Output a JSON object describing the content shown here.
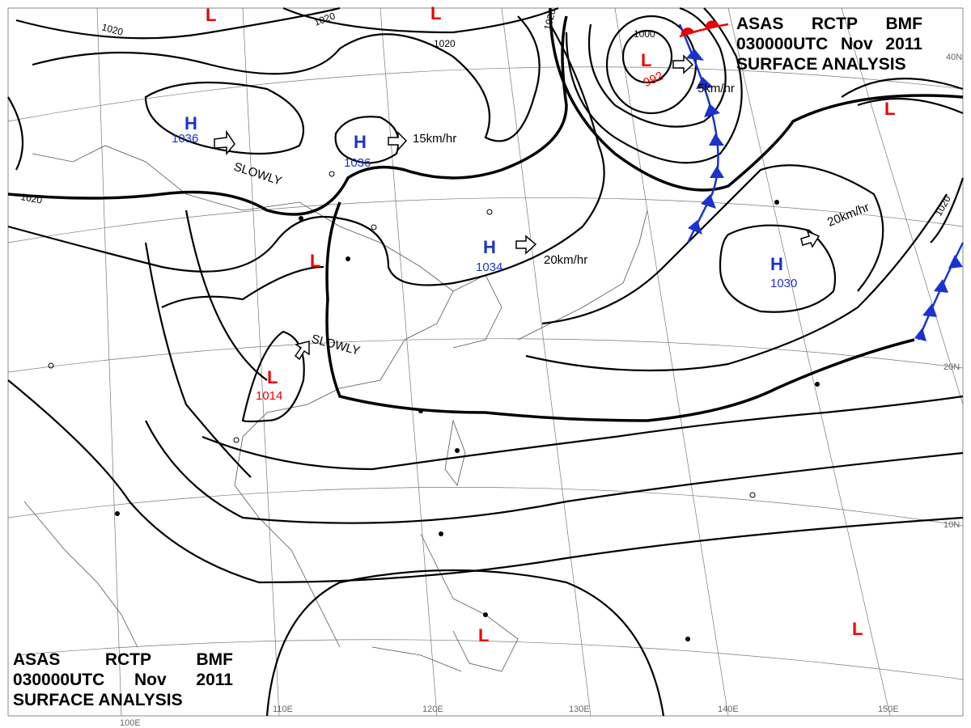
{
  "header": {
    "line1": [
      "ASAS",
      "RCTP",
      "BMF"
    ],
    "line2": [
      "030000UTC",
      "Nov",
      "2011"
    ],
    "line3": "SURFACE ANALYSIS"
  },
  "colors": {
    "high": "#1a33cc",
    "low": "#e00000",
    "isobar": "#000000",
    "cold_front": "#1a33cc",
    "warm_front": "#e00000"
  },
  "highs": [
    {
      "symbol": "H",
      "pressure": "1036"
    },
    {
      "symbol": "H",
      "pressure": "1036"
    },
    {
      "symbol": "H",
      "pressure": "1034"
    },
    {
      "symbol": "H",
      "pressure": "1030"
    }
  ],
  "lows": [
    {
      "symbol": "L",
      "pressure": ""
    },
    {
      "symbol": "L",
      "pressure": ""
    },
    {
      "symbol": "L",
      "pressure": "992"
    },
    {
      "symbol": "L",
      "pressure": ""
    },
    {
      "symbol": "L",
      "pressure": "1014"
    },
    {
      "symbol": "L",
      "pressure": ""
    },
    {
      "symbol": "L",
      "pressure": ""
    },
    {
      "symbol": "L",
      "pressure": ""
    }
  ],
  "motions": [
    "SLOWLY",
    "15km/hr",
    "20km/hr",
    "5km/hr",
    "20km/hr",
    "SLOWLY"
  ],
  "isobar_labels": [
    "1020",
    "1020",
    "1020",
    "1020",
    "1020",
    "1020",
    "1000"
  ],
  "longitudes": [
    "100E",
    "110E",
    "120E",
    "130E",
    "140E",
    "150E"
  ],
  "latitudes": [
    "40N",
    "20N",
    "10N"
  ]
}
